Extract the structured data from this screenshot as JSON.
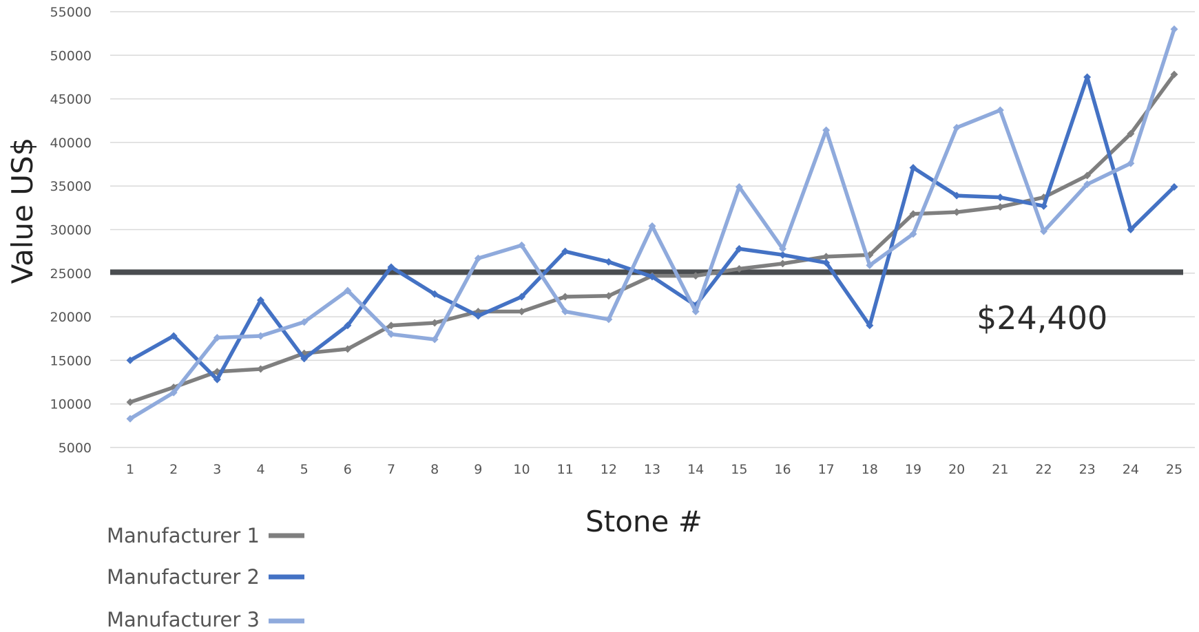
{
  "chart_data": {
    "type": "line",
    "title": "",
    "xlabel": "Stone #",
    "ylabel": "Value US$",
    "categories": [
      "1",
      "2",
      "3",
      "4",
      "5",
      "6",
      "7",
      "8",
      "9",
      "10",
      "11",
      "12",
      "13",
      "14",
      "15",
      "16",
      "17",
      "18",
      "19",
      "20",
      "21",
      "22",
      "23",
      "24",
      "25"
    ],
    "y_ticks": [
      "5000",
      "10000",
      "15000",
      "20000",
      "25000",
      "30000",
      "35000",
      "40000",
      "45000",
      "50000",
      "55000"
    ],
    "ylim": [
      5000,
      55000
    ],
    "grid": "horizontal",
    "legend_position": "bottom-left",
    "series": [
      {
        "name": "Manufacturer 1",
        "color": "#7f7f7f",
        "values": [
          10200,
          11900,
          13700,
          14000,
          15800,
          16300,
          19000,
          19300,
          20600,
          20600,
          22300,
          22400,
          24700,
          24700,
          25500,
          26100,
          26900,
          27100,
          31800,
          32000,
          32600,
          33700,
          36200,
          41000,
          47800
        ]
      },
      {
        "name": "Manufacturer 2",
        "color": "#4472c4",
        "values": [
          15000,
          17800,
          12800,
          21900,
          15200,
          19000,
          25700,
          22600,
          20100,
          22300,
          27500,
          26300,
          24600,
          21300,
          27800,
          27100,
          26200,
          19000,
          37100,
          33900,
          33700,
          32700,
          47500,
          30000,
          34900
        ]
      },
      {
        "name": "Manufacturer 3",
        "color": "#8faadc",
        "values": [
          8300,
          11300,
          17600,
          17800,
          19400,
          23000,
          18000,
          17400,
          26700,
          28200,
          20600,
          19700,
          30400,
          20600,
          34900,
          27800,
          41400,
          25900,
          29500,
          41700,
          43700,
          29800,
          35200,
          37600,
          53000
        ]
      }
    ],
    "reference_line": {
      "value": 24400,
      "label": "$24,400",
      "color": "#4a4d50"
    }
  }
}
